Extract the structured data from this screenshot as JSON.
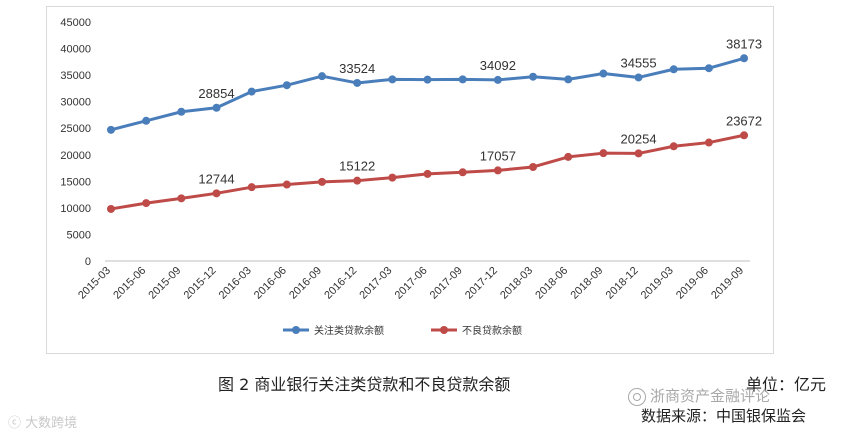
{
  "chart_data": {
    "type": "line",
    "categories": [
      "2015-03",
      "2015-06",
      "2015-09",
      "2015-12",
      "2016-03",
      "2016-06",
      "2016-09",
      "2016-12",
      "2017-03",
      "2017-06",
      "2017-09",
      "2017-12",
      "2018-03",
      "2018-06",
      "2018-09",
      "2018-12",
      "2019-03",
      "2019-06",
      "2019-09"
    ],
    "series": [
      {
        "name": "关注类贷款余额",
        "color": "#4a7ebb",
        "values": [
          24700,
          26400,
          28100,
          28854,
          31900,
          33100,
          34800,
          33524,
          34200,
          34150,
          34200,
          34092,
          34700,
          34200,
          35300,
          34555,
          36100,
          36300,
          38173
        ],
        "labels": {
          "3": "28854",
          "7": "33524",
          "11": "34092",
          "15": "34555",
          "18": "38173"
        }
      },
      {
        "name": "不良贷款余额",
        "color": "#be4b48",
        "values": [
          9800,
          10900,
          11800,
          12744,
          13900,
          14400,
          14900,
          15122,
          15700,
          16400,
          16700,
          17057,
          17700,
          19600,
          20300,
          20254,
          21600,
          22300,
          23672
        ],
        "labels": {
          "3": "12744",
          "7": "15122",
          "11": "17057",
          "15": "20254",
          "18": "23672"
        }
      }
    ],
    "yticks": [
      0,
      5000,
      10000,
      15000,
      20000,
      25000,
      30000,
      35000,
      40000,
      45000
    ],
    "ylim": [
      0,
      45000
    ],
    "grid": false,
    "legend": "bottom"
  },
  "caption": "图 2  商业银行关注类贷款和不良贷款余额",
  "unit": "单位：亿元",
  "source": "数据来源：中国银保监会",
  "watermark_right": "浙商资产金融评论",
  "watermark_left": "大数跨境"
}
